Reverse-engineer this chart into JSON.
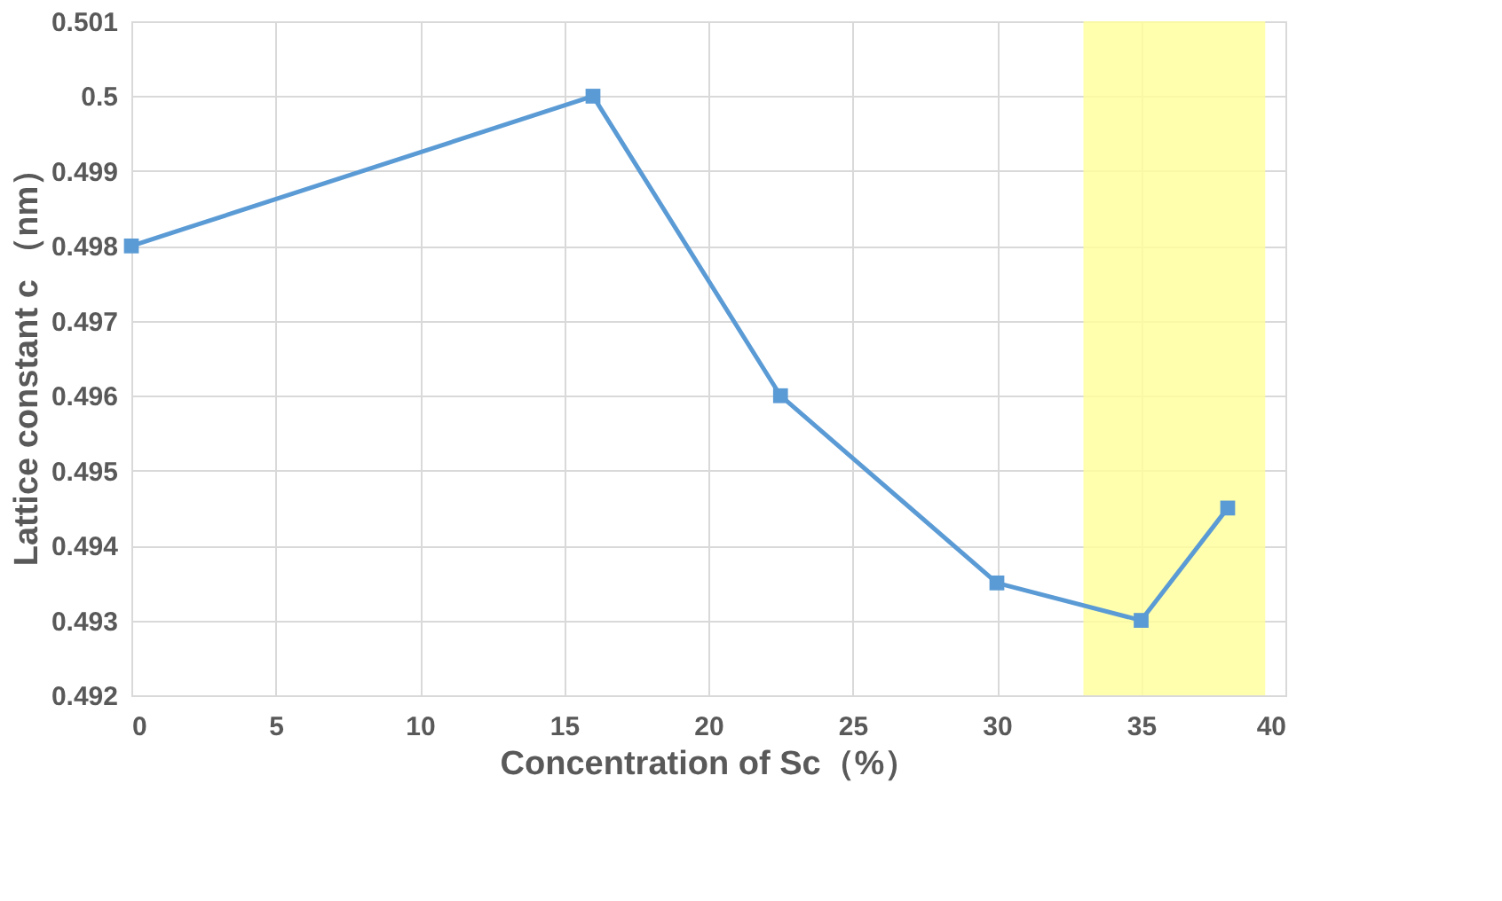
{
  "chart_data": {
    "type": "line",
    "xlabel": "Concentration of Sc（%）",
    "ylabel": "Lattice constant c （nm）",
    "x": [
      0,
      16,
      22.5,
      30,
      35,
      38
    ],
    "series": [
      {
        "color": "#5b9bd5",
        "values": [
          0.498,
          0.5,
          0.496,
          0.4935,
          0.493,
          0.4945
        ]
      }
    ],
    "xlim": [
      0,
      40
    ],
    "xticks": [
      0,
      5,
      10,
      15,
      20,
      25,
      30,
      35,
      40
    ],
    "ylim": [
      0.492,
      0.501
    ],
    "yticks": [
      0.492,
      0.493,
      0.494,
      0.495,
      0.496,
      0.497,
      0.498,
      0.499,
      0.5,
      0.501
    ],
    "bands": [
      {
        "axis": "x",
        "from": 33,
        "to": 39.3,
        "color": "#ffff99"
      }
    ],
    "grid": true,
    "marker": "square",
    "line_style": "solid"
  }
}
